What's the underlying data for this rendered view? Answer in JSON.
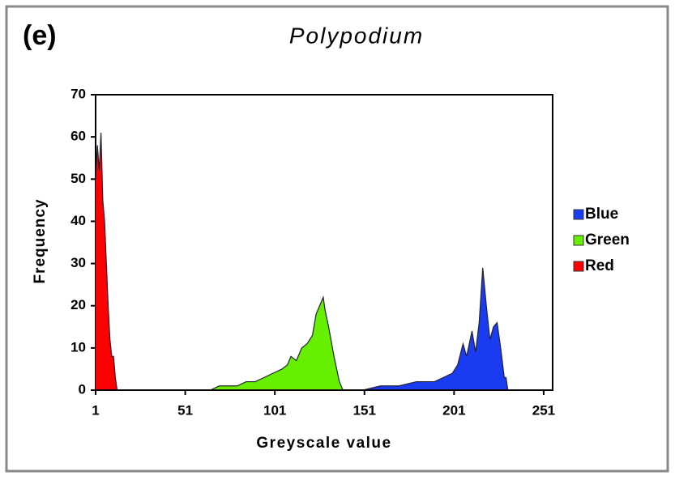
{
  "chart_data": {
    "type": "area",
    "panel_label": "(e)",
    "title": "Polypodium",
    "x_label": "Greyscale value",
    "y_label": "Frequency",
    "xlim": [
      1,
      256
    ],
    "ylim": [
      0,
      70
    ],
    "xticks": [
      1,
      51,
      101,
      151,
      201,
      251
    ],
    "yticks": [
      0,
      10,
      20,
      30,
      40,
      50,
      60,
      70
    ],
    "legend_position": "right",
    "series": [
      {
        "name": "Blue",
        "color": "#1a3cf0",
        "x": [
          140,
          150,
          160,
          170,
          180,
          190,
          195,
          200,
          203,
          206,
          208,
          211,
          213,
          215,
          217,
          219,
          221,
          223,
          225,
          227,
          229,
          230,
          231
        ],
        "values": [
          0,
          0,
          1,
          1,
          2,
          2,
          3,
          4,
          6,
          11,
          8,
          14,
          9,
          16,
          29,
          20,
          12,
          15,
          16,
          10,
          3,
          3,
          0
        ]
      },
      {
        "name": "Green",
        "color": "#66f000",
        "x": [
          65,
          70,
          75,
          80,
          85,
          90,
          95,
          100,
          105,
          108,
          110,
          113,
          116,
          119,
          122,
          124,
          126,
          128,
          129,
          131,
          134,
          137,
          139
        ],
        "values": [
          0,
          1,
          1,
          1,
          2,
          2,
          3,
          4,
          5,
          6,
          8,
          7,
          10,
          11,
          13,
          18,
          20,
          22,
          19,
          15,
          8,
          2,
          0
        ]
      },
      {
        "name": "Red",
        "color": "#ff0000",
        "x": [
          1,
          2,
          3,
          4,
          5,
          6,
          7,
          8,
          9,
          10,
          11,
          12,
          13
        ],
        "values": [
          50,
          58,
          52,
          61,
          45,
          40,
          30,
          20,
          12,
          8,
          8,
          3,
          0
        ]
      }
    ]
  }
}
